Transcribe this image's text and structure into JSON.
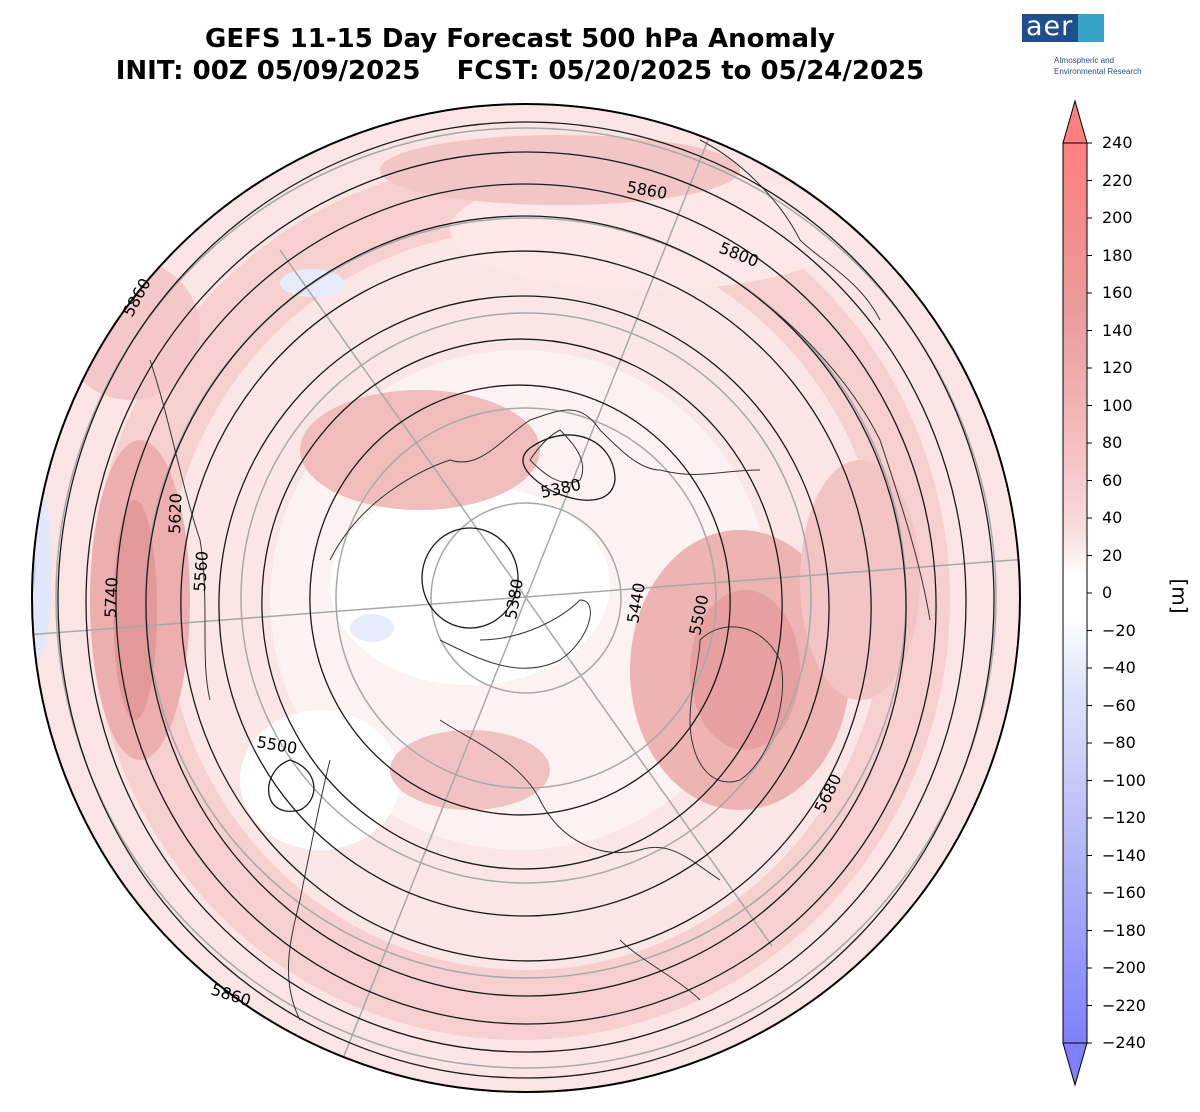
{
  "title_line1": "GEFS 11-15 Day Forecast 500 hPa Anomaly",
  "title_line2": "INIT: 00Z 05/09/2025    FCST: 05/20/2025 to 05/24/2025",
  "logo": {
    "text": "aer",
    "subtitle_line1": "Atmospheric and",
    "subtitle_line2": "Environmental Research",
    "colors": {
      "dark": "#1f4e8c",
      "light": "#36a2c7"
    }
  },
  "colorbar": {
    "unit": "[m]",
    "ticks": [
      "240",
      "220",
      "200",
      "180",
      "160",
      "140",
      "120",
      "100",
      "80",
      "60",
      "40",
      "20",
      "0",
      "−20",
      "−40",
      "−60",
      "−80",
      "−100",
      "−120",
      "−140",
      "−160",
      "−180",
      "−200",
      "−220",
      "−240"
    ],
    "tick_values": [
      240,
      220,
      200,
      180,
      160,
      140,
      120,
      100,
      80,
      60,
      40,
      20,
      0,
      -20,
      -40,
      -60,
      -80,
      -100,
      -120,
      -140,
      -160,
      -180,
      -200,
      -220,
      -240
    ],
    "color_high": "#ff7f7f",
    "color_low": "#7f7fff"
  },
  "contour_labels": [
    "5860",
    "5860",
    "5860",
    "5800",
    "5740",
    "5620",
    "5560",
    "5380",
    "5380",
    "5440",
    "5500",
    "5500",
    "5680"
  ]
}
